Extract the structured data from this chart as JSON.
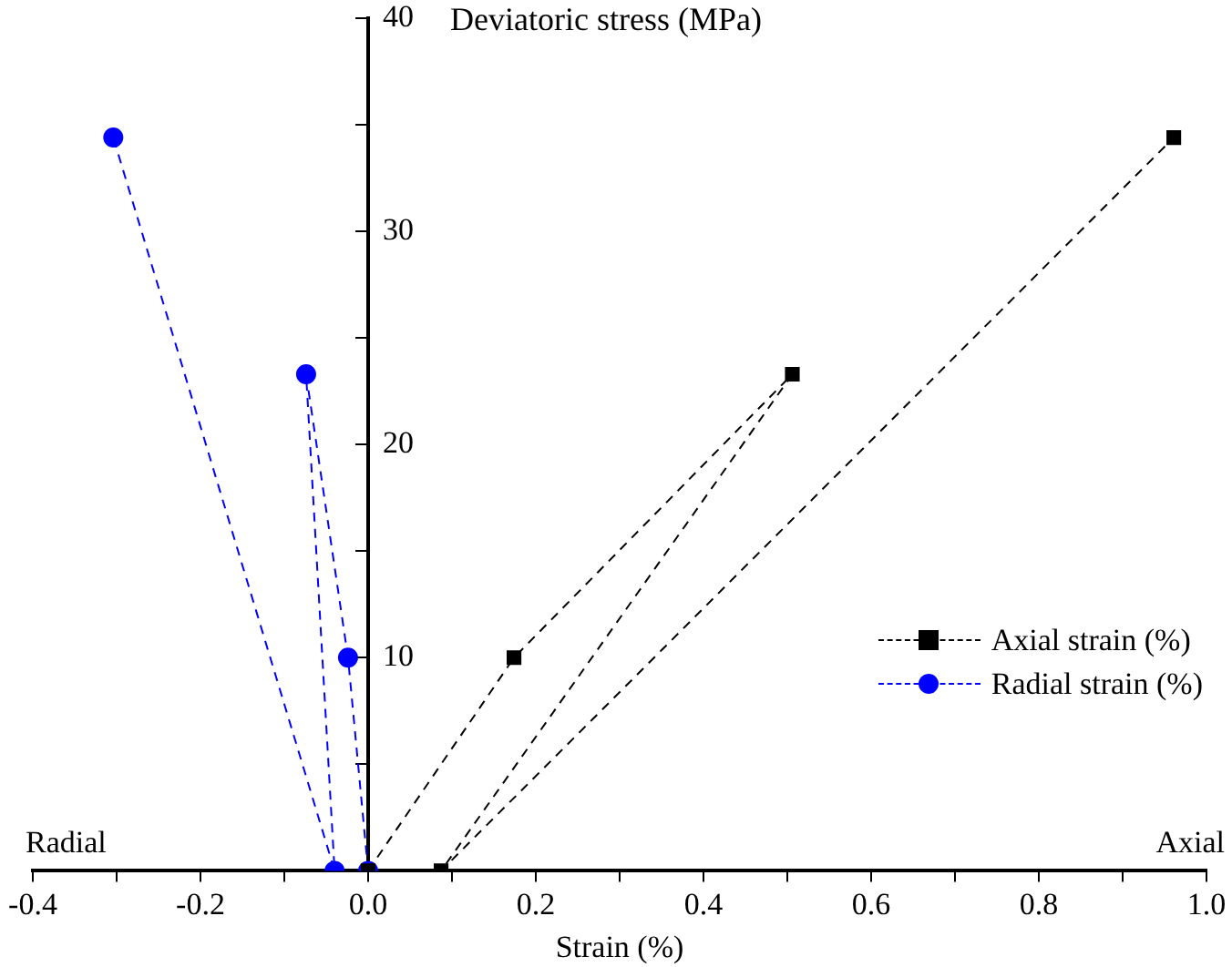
{
  "chart_data": {
    "type": "line",
    "xlabel": "Strain (%)",
    "ylabel": "Deviatoric stress (MPa)",
    "annotations": [
      "Radial",
      "Axial"
    ],
    "xlim": [
      -0.4,
      1.0
    ],
    "ylim": [
      0,
      40
    ],
    "xticks": [
      -0.4,
      {
        "value": -0.3,
        "label": null
      },
      -0.2,
      {
        "value": -0.1,
        "label": null
      },
      {
        "value": 0,
        "label": "0.0"
      },
      {
        "value": 0.1,
        "label": null
      },
      0.2,
      {
        "value": 0.3,
        "label": null
      },
      0.4,
      {
        "value": 0.5,
        "label": null
      },
      0.6,
      {
        "value": 0.7,
        "label": null
      },
      0.8,
      {
        "value": 0.9,
        "label": null
      },
      {
        "value": 1.0,
        "label": "1.0"
      }
    ],
    "yticks": [
      {
        "value": 0,
        "label": null
      },
      {
        "value": 5,
        "label": null
      },
      10,
      {
        "value": 15,
        "label": null
      },
      20,
      {
        "value": 25,
        "label": null
      },
      30,
      {
        "value": 35,
        "label": null
      },
      40
    ],
    "series": [
      {
        "name": "Axial strain (%)",
        "color": "#000000",
        "marker": "square",
        "x": [
          0,
          0.174,
          0.506,
          0.087,
          0.961
        ],
        "values": [
          0,
          10,
          23.3,
          0,
          34.4
        ]
      },
      {
        "name": "Radial strain (%)",
        "color": "#0000ff",
        "marker": "circle",
        "x": [
          0,
          -0.024,
          -0.074,
          -0.04,
          -0.304
        ],
        "values": [
          0,
          10,
          23.3,
          0,
          34.4
        ]
      }
    ],
    "line_style": "dashed",
    "grid": false,
    "legend": "right"
  }
}
